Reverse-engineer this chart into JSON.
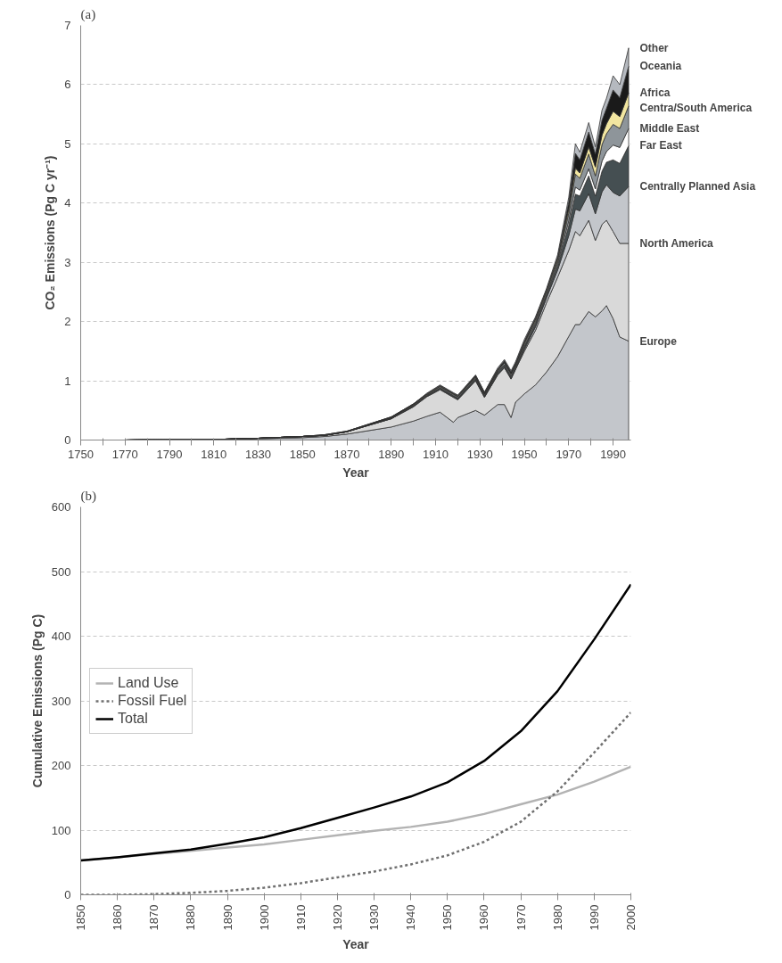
{
  "chart_data": [
    {
      "type": "area",
      "stacked": true,
      "title": "(a)",
      "xlabel": "Year",
      "ylabel": "CO₂ Emissions (Pg C yr⁻¹)",
      "legend": false,
      "grid": "y",
      "xlim": [
        1750,
        1998
      ],
      "ylim": [
        0,
        7
      ],
      "xticks": [
        1750,
        {
          "value": 1760,
          "label": null
        },
        1770,
        {
          "value": 1780,
          "label": null
        },
        1790,
        {
          "value": 1800,
          "label": null
        },
        1810,
        {
          "value": 1820,
          "label": null
        },
        1830,
        {
          "value": 1840,
          "label": null
        },
        1850,
        {
          "value": 1860,
          "label": null
        },
        1870,
        {
          "value": 1880,
          "label": null
        },
        1890,
        {
          "value": 1900,
          "label": null
        },
        1910,
        {
          "value": 1920,
          "label": null
        },
        1930,
        {
          "value": 1940,
          "label": null
        },
        1950,
        {
          "value": 1960,
          "label": null
        },
        1970,
        {
          "value": 1980,
          "label": null
        },
        1990
      ],
      "yticks": [
        0,
        1,
        2,
        3,
        4,
        5,
        6,
        7
      ],
      "x": [
        1750,
        1770,
        1790,
        1810,
        1830,
        1850,
        1860,
        1870,
        1880,
        1890,
        1900,
        1906,
        1912,
        1918,
        1920,
        1928,
        1932,
        1938,
        1941,
        1944,
        1946,
        1950,
        1955,
        1960,
        1965,
        1970,
        1973,
        1975,
        1979,
        1982,
        1985,
        1987,
        1990,
        1993,
        1997
      ],
      "series": [
        {
          "name": "Europe",
          "color": "#c3c6cb",
          "values": [
            0,
            0,
            0.01,
            0.01,
            0.02,
            0.04,
            0.06,
            0.1,
            0.16,
            0.22,
            0.32,
            0.4,
            0.47,
            0.3,
            0.38,
            0.5,
            0.42,
            0.6,
            0.6,
            0.38,
            0.64,
            0.78,
            0.93,
            1.15,
            1.41,
            1.75,
            1.95,
            1.95,
            2.17,
            2.08,
            2.18,
            2.27,
            2.05,
            1.74,
            1.67
          ]
        },
        {
          "name": "North America",
          "color": "#d9d9d9",
          "values": [
            0,
            0,
            0,
            0,
            0.01,
            0.02,
            0.02,
            0.04,
            0.09,
            0.14,
            0.24,
            0.33,
            0.38,
            0.42,
            0.3,
            0.5,
            0.3,
            0.5,
            0.62,
            0.65,
            0.55,
            0.72,
            0.92,
            1.17,
            1.34,
            1.45,
            1.57,
            1.5,
            1.54,
            1.29,
            1.46,
            1.44,
            1.47,
            1.58,
            1.65
          ]
        },
        {
          "name": "Centrally Planned Asia",
          "color": "#c3c6cb",
          "values": [
            0,
            0,
            0,
            0,
            0,
            0,
            0,
            0,
            0,
            0,
            0.01,
            0.01,
            0.01,
            0.01,
            0.01,
            0.01,
            0.01,
            0.01,
            0.01,
            0.01,
            0.01,
            0.03,
            0.06,
            0.08,
            0.12,
            0.25,
            0.38,
            0.42,
            0.45,
            0.45,
            0.55,
            0.6,
            0.66,
            0.8,
            0.96
          ]
        },
        {
          "name": "Far East",
          "color": "#454f52",
          "values": [
            0,
            0,
            0,
            0,
            0,
            0,
            0,
            0,
            0.01,
            0.01,
            0.01,
            0.01,
            0.02,
            0.02,
            0.02,
            0.02,
            0.02,
            0.03,
            0.03,
            0.03,
            0.02,
            0.04,
            0.04,
            0.04,
            0.07,
            0.17,
            0.25,
            0.25,
            0.3,
            0.3,
            0.35,
            0.38,
            0.55,
            0.55,
            0.69
          ]
        },
        {
          "name": "Middle East",
          "color": "#ffffff",
          "values": [
            0,
            0,
            0,
            0,
            0,
            0,
            0,
            0,
            0,
            0,
            0,
            0,
            0,
            0,
            0,
            0.01,
            0,
            0.01,
            0.01,
            0.01,
            0.01,
            0.01,
            0.02,
            0.02,
            0.04,
            0.08,
            0.12,
            0.1,
            0.12,
            0.12,
            0.17,
            0.18,
            0.25,
            0.27,
            0.29
          ]
        },
        {
          "name": "Centra/South America",
          "color": "#8e959a",
          "values": [
            0,
            0,
            0,
            0,
            0,
            0,
            0,
            0,
            0,
            0.01,
            0.01,
            0.01,
            0.02,
            0.02,
            0.02,
            0.02,
            0.02,
            0.02,
            0.03,
            0.03,
            0.03,
            0.04,
            0.04,
            0.04,
            0.05,
            0.13,
            0.22,
            0.2,
            0.25,
            0.22,
            0.28,
            0.3,
            0.35,
            0.32,
            0.38
          ]
        },
        {
          "name": "Africa",
          "color": "#f2e6a0",
          "values": [
            0,
            0,
            0,
            0,
            0,
            0,
            0,
            0,
            0,
            0,
            0.01,
            0.01,
            0.01,
            0.01,
            0.01,
            0.01,
            0.01,
            0.01,
            0.01,
            0.01,
            0.01,
            0.02,
            0.03,
            0.03,
            0.04,
            0.07,
            0.1,
            0.09,
            0.12,
            0.15,
            0.16,
            0.17,
            0.22,
            0.2,
            0.22
          ]
        },
        {
          "name": "Oceania",
          "color": "#1a1a1a",
          "values": [
            0,
            0,
            0,
            0,
            0,
            0,
            0.01,
            0.01,
            0.01,
            0.01,
            0.01,
            0.01,
            0.01,
            0.01,
            0.01,
            0.02,
            0.02,
            0.02,
            0.03,
            0.03,
            0.03,
            0.03,
            0.02,
            0.01,
            0.02,
            0.12,
            0.25,
            0.22,
            0.25,
            0.22,
            0.25,
            0.26,
            0.36,
            0.32,
            0.45
          ]
        },
        {
          "name": "Other",
          "color": "#b5b9bf",
          "values": [
            0,
            0,
            0,
            0,
            0,
            0,
            0,
            0,
            0,
            0,
            0,
            0.01,
            0.01,
            0.01,
            0.01,
            0.01,
            0.01,
            0.02,
            0.02,
            0.02,
            0.02,
            0.03,
            0.02,
            0.02,
            0.04,
            0.08,
            0.16,
            0.13,
            0.16,
            0.12,
            0.17,
            0.17,
            0.24,
            0.22,
            0.31
          ]
        }
      ]
    },
    {
      "type": "line",
      "title": "(b)",
      "xlabel": "Year",
      "ylabel": "Cumulative Emissions (Pg C)",
      "legend": "left",
      "grid": "y",
      "xlim": [
        1850,
        2000
      ],
      "ylim": [
        0,
        600
      ],
      "xticks": [
        1850,
        1860,
        1870,
        1880,
        1890,
        1900,
        1910,
        1920,
        1930,
        1940,
        1950,
        1960,
        1970,
        1980,
        1990,
        2000
      ],
      "yticks": [
        0,
        100,
        200,
        300,
        400,
        500,
        600
      ],
      "x": [
        1850,
        1860,
        1870,
        1880,
        1890,
        1900,
        1910,
        1920,
        1930,
        1940,
        1950,
        1960,
        1970,
        1980,
        1990,
        2000
      ],
      "series": [
        {
          "name": "Land Use",
          "color": "#b3b3b3",
          "line_style": "solid",
          "values": [
            53,
            58,
            63,
            68,
            73,
            78,
            85,
            92,
            99,
            105,
            113,
            125,
            140,
            155,
            175,
            198
          ]
        },
        {
          "name": "Fossil Fuel",
          "color": "#707070",
          "line_style": "dashed",
          "values": [
            0,
            0,
            1,
            3,
            6,
            11,
            18,
            27,
            36,
            47,
            61,
            82,
            113,
            160,
            220,
            282
          ]
        },
        {
          "name": "Total",
          "color": "#000000",
          "line_style": "solid",
          "values": [
            53,
            58,
            64,
            70,
            79,
            89,
            103,
            119,
            135,
            152,
            174,
            207,
            253,
            315,
            395,
            480
          ]
        }
      ]
    }
  ]
}
